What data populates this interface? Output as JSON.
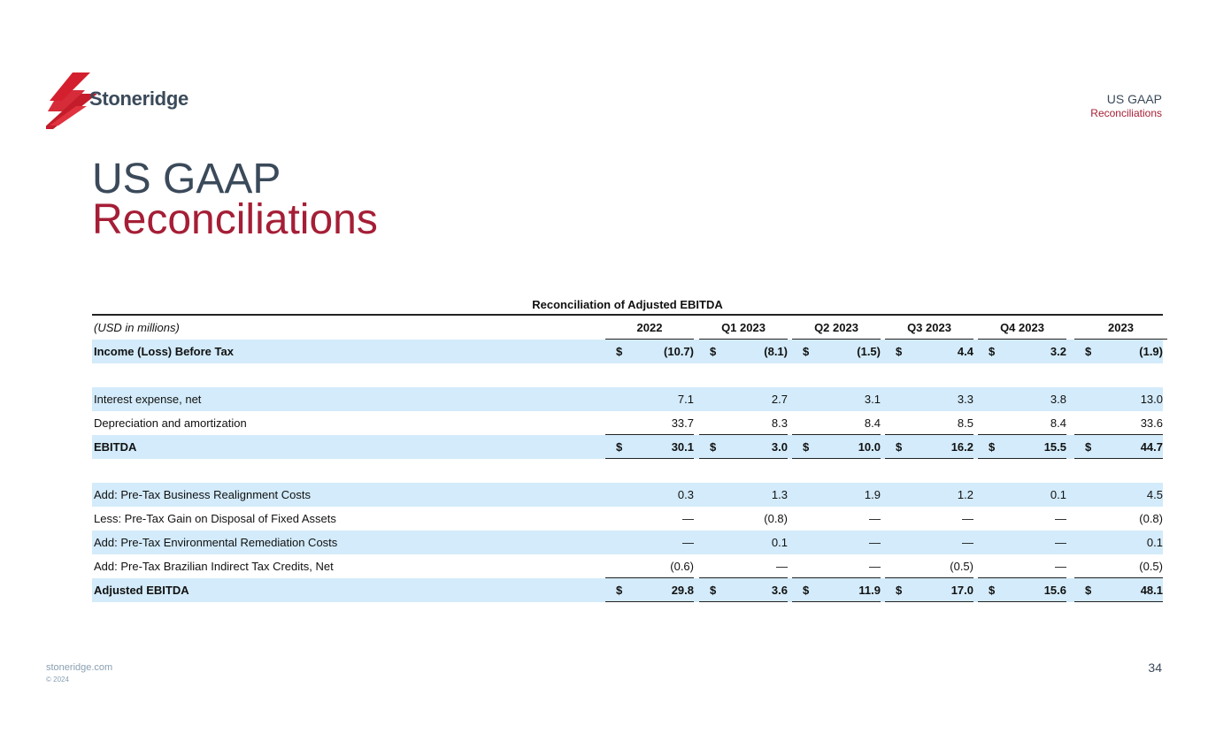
{
  "brand": {
    "name": "Stoneridge",
    "accent": "#a51e36",
    "text_color": "#3b4a5a",
    "shade": "#d3ebfa"
  },
  "header": {
    "section": "US GAAP",
    "subsection": "Reconciliations"
  },
  "title": {
    "line1": "US GAAP",
    "line2": "Reconciliations"
  },
  "table": {
    "title": "Reconciliation of Adjusted EBITDA",
    "unit_label": "(USD in millions)",
    "columns": [
      "2022",
      "Q1 2023",
      "Q2 2023",
      "Q3 2023",
      "Q4 2023",
      "2023"
    ],
    "rows": [
      {
        "label": "Income (Loss) Before Tax",
        "values": [
          "(10.7)",
          "(8.1)",
          "(1.5)",
          "4.4",
          "3.2",
          "(1.9)"
        ],
        "bold": true,
        "shade": true,
        "dollar": true,
        "underline": false
      },
      {
        "label": "",
        "values": [
          "",
          "",
          "",
          "",
          "",
          ""
        ],
        "bold": false,
        "shade": false,
        "dollar": false,
        "underline": false
      },
      {
        "label": "Interest expense, net",
        "values": [
          "7.1",
          "2.7",
          "3.1",
          "3.3",
          "3.8",
          "13.0"
        ],
        "bold": false,
        "shade": true,
        "dollar": false,
        "underline": false
      },
      {
        "label": "Depreciation and amortization",
        "values": [
          "33.7",
          "8.3",
          "8.4",
          "8.5",
          "8.4",
          "33.6"
        ],
        "bold": false,
        "shade": false,
        "dollar": false,
        "underline": true
      },
      {
        "label": "EBITDA",
        "values": [
          "30.1",
          "3.0",
          "10.0",
          "16.2",
          "15.5",
          "44.7"
        ],
        "bold": true,
        "shade": true,
        "dollar": true,
        "underline": true
      },
      {
        "label": "",
        "values": [
          "",
          "",
          "",
          "",
          "",
          ""
        ],
        "bold": false,
        "shade": false,
        "dollar": false,
        "underline": false
      },
      {
        "label": "Add: Pre-Tax Business Realignment Costs",
        "values": [
          "0.3",
          "1.3",
          "1.9",
          "1.2",
          "0.1",
          "4.5"
        ],
        "bold": false,
        "shade": true,
        "dollar": false,
        "underline": false
      },
      {
        "label": "Less: Pre-Tax Gain on Disposal of Fixed Assets",
        "values": [
          "—",
          "(0.8)",
          "—",
          "—",
          "—",
          "(0.8)"
        ],
        "bold": false,
        "shade": false,
        "dollar": false,
        "underline": false
      },
      {
        "label": "Add: Pre-Tax Environmental Remediation Costs",
        "values": [
          "—",
          "0.1",
          "—",
          "—",
          "—",
          "0.1"
        ],
        "bold": false,
        "shade": true,
        "dollar": false,
        "underline": false
      },
      {
        "label": "Add: Pre-Tax Brazilian Indirect Tax Credits, Net",
        "values": [
          "(0.6)",
          "—",
          "—",
          "(0.5)",
          "—",
          "(0.5)"
        ],
        "bold": false,
        "shade": false,
        "dollar": false,
        "underline": true
      },
      {
        "label": "Adjusted EBITDA",
        "values": [
          "29.8",
          "3.6",
          "11.9",
          "17.0",
          "15.6",
          "48.1"
        ],
        "bold": true,
        "shade": true,
        "dollar": true,
        "underline": true
      }
    ]
  },
  "footer": {
    "link": "stoneridge.com",
    "copyright": "© 2024",
    "page": "34"
  }
}
